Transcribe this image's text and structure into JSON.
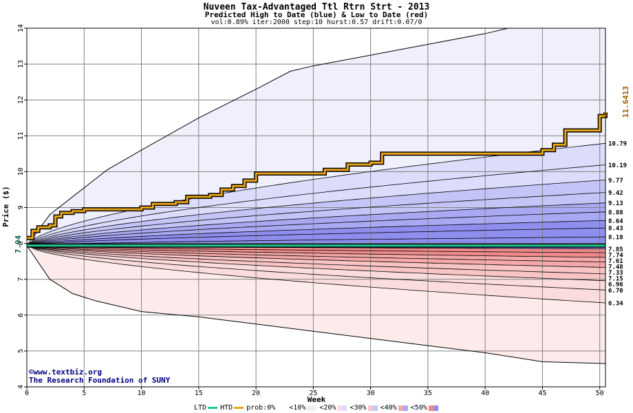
{
  "header": {
    "title": "Nuveen Tax-Advantaged Ttl Rtrn Strt - 2013",
    "subtitle": "Predicted High to Date (blue) &  Low to Date (red)",
    "params": "vol:0.89% iter:2000 step:10 hurst:0.57 drift:0.07/0"
  },
  "credits": {
    "line1": "©www.textbiz.org",
    "line2": "The Research Foundation of SUNY"
  },
  "colors": {
    "htd": "#e8a317",
    "ltd": "#20c997",
    "blue_bands": [
      "#f0f0fd",
      "#dcdcfb",
      "#c4c4f7",
      "#a9a9f3",
      "#8e8eee"
    ],
    "red_bands": [
      "#fdebeb",
      "#fbdcdc",
      "#f8c4c4",
      "#f4a8a8",
      "#ef8a8a"
    ]
  },
  "legend": {
    "items": [
      "LTD",
      "HTD",
      "prob:0%",
      "<10%",
      "<20%",
      "<30%",
      "<40%",
      "<50%"
    ]
  },
  "chart_data": {
    "type": "line",
    "xlabel": "Week",
    "ylabel": "Price ($)",
    "xlim": [
      0,
      50.5
    ],
    "ylim": [
      4,
      14
    ],
    "x_ticks": [
      0,
      5,
      10,
      15,
      20,
      25,
      30,
      35,
      40,
      45,
      50
    ],
    "y_ticks": [
      4,
      5,
      6,
      7,
      8,
      9,
      10,
      11,
      12,
      13,
      14
    ],
    "grid": true,
    "start_price": 7.94,
    "start_label": "7.94",
    "last_label_value": "7.93986",
    "htd_last_label": "11.6413",
    "upper_envelope": [
      [
        0,
        7.94
      ],
      [
        2,
        8.8
      ],
      [
        5,
        9.55
      ],
      [
        7,
        10.05
      ],
      [
        10,
        10.6
      ],
      [
        15,
        11.5
      ],
      [
        20,
        12.3
      ],
      [
        23,
        12.8
      ],
      [
        25,
        12.95
      ],
      [
        30,
        13.25
      ],
      [
        35,
        13.55
      ],
      [
        40,
        13.85
      ],
      [
        42,
        14.0
      ]
    ],
    "lower_envelope": [
      [
        0,
        7.94
      ],
      [
        2,
        7.0
      ],
      [
        4,
        6.6
      ],
      [
        6,
        6.4
      ],
      [
        10,
        6.1
      ],
      [
        15,
        5.95
      ],
      [
        20,
        5.75
      ],
      [
        25,
        5.55
      ],
      [
        30,
        5.35
      ],
      [
        35,
        5.15
      ],
      [
        40,
        4.95
      ],
      [
        45,
        4.7
      ],
      [
        50.5,
        4.65
      ]
    ],
    "percentile_lines": [
      {
        "end": 10.79,
        "label": "10.79"
      },
      {
        "end": 10.19,
        "label": "10.19"
      },
      {
        "end": 9.77,
        "label": "9.77"
      },
      {
        "end": 9.42,
        "label": "9.42"
      },
      {
        "end": 9.13,
        "label": "9.13"
      },
      {
        "end": 8.88,
        "label": "8.88"
      },
      {
        "end": 8.64,
        "label": "8.64"
      },
      {
        "end": 8.43,
        "label": "8.43"
      },
      {
        "end": 8.18,
        "label": "8.18"
      },
      {
        "end": 7.85,
        "label": "7.85"
      },
      {
        "end": 7.74,
        "label": "7.74"
      },
      {
        "end": 7.61,
        "label": "7.61"
      },
      {
        "end": 7.48,
        "label": "7.48"
      },
      {
        "end": 7.33,
        "label": "7.33"
      },
      {
        "end": 7.15,
        "label": "7.15"
      },
      {
        "end": 6.96,
        "label": "6.96"
      },
      {
        "end": 6.7,
        "label": "6.70"
      },
      {
        "end": 6.34,
        "label": "6.34"
      }
    ],
    "htd_series": [
      [
        0,
        8.15
      ],
      [
        0.5,
        8.35
      ],
      [
        1,
        8.45
      ],
      [
        2,
        8.5
      ],
      [
        2.5,
        8.75
      ],
      [
        3,
        8.85
      ],
      [
        4,
        8.9
      ],
      [
        5,
        8.95
      ],
      [
        9,
        8.95
      ],
      [
        10,
        9.0
      ],
      [
        11,
        9.1
      ],
      [
        13,
        9.15
      ],
      [
        14,
        9.3
      ],
      [
        16,
        9.35
      ],
      [
        17,
        9.5
      ],
      [
        18,
        9.6
      ],
      [
        19,
        9.75
      ],
      [
        20,
        9.95
      ],
      [
        25,
        9.95
      ],
      [
        26,
        10.05
      ],
      [
        28,
        10.2
      ],
      [
        30,
        10.25
      ],
      [
        31,
        10.5
      ],
      [
        44,
        10.5
      ],
      [
        45,
        10.6
      ],
      [
        46,
        10.75
      ],
      [
        47,
        11.15
      ],
      [
        49,
        11.15
      ],
      [
        50,
        11.55
      ],
      [
        50.5,
        11.65
      ]
    ],
    "ltd_series": [
      [
        0,
        7.94
      ],
      [
        50.5,
        7.94
      ]
    ]
  }
}
